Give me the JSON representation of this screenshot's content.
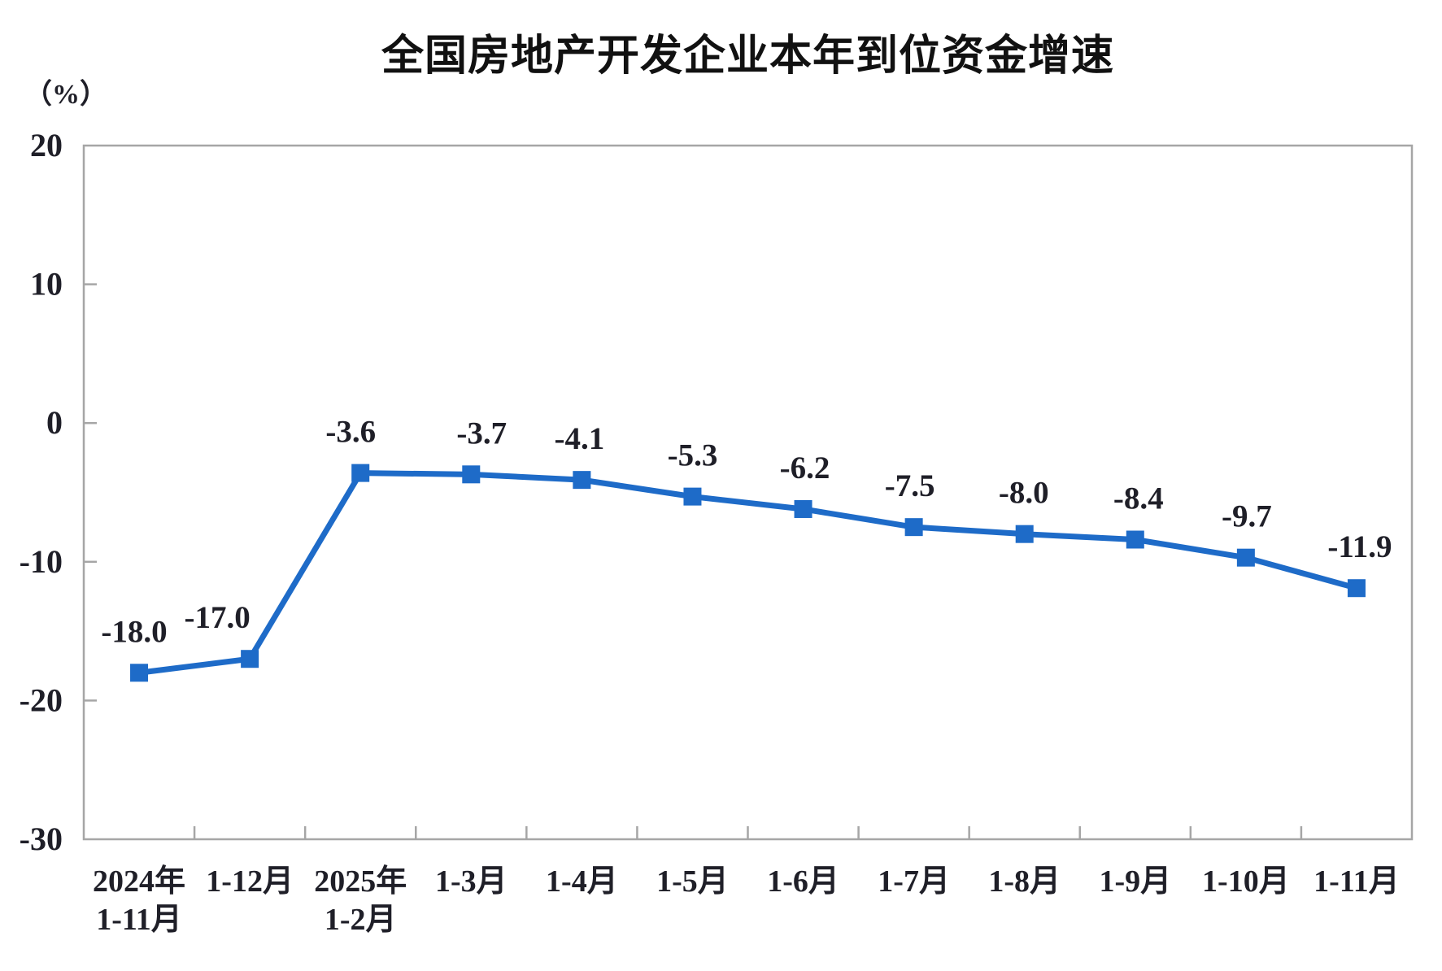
{
  "page": {
    "background": "#ffffff"
  },
  "title": "全国房地产开发企业本年到位资金增速",
  "unit_label": "（%）",
  "chart_data": {
    "type": "line",
    "title": "全国房地产开发企业本年到位资金增速",
    "unit": "（%）",
    "categories": [
      {
        "line1": "2024年",
        "line2": "1-11月"
      },
      {
        "line1": "1-12月",
        "line2": ""
      },
      {
        "line1": "2025年",
        "line2": "1-2月"
      },
      {
        "line1": "1-3月",
        "line2": ""
      },
      {
        "line1": "1-4月",
        "line2": ""
      },
      {
        "line1": "1-5月",
        "line2": ""
      },
      {
        "line1": "1-6月",
        "line2": ""
      },
      {
        "line1": "1-7月",
        "line2": ""
      },
      {
        "line1": "1-8月",
        "line2": ""
      },
      {
        "line1": "1-9月",
        "line2": ""
      },
      {
        "line1": "1-10月",
        "line2": ""
      },
      {
        "line1": "1-11月",
        "line2": ""
      }
    ],
    "values": [
      -18.0,
      -17.0,
      -3.6,
      -3.7,
      -4.1,
      -5.3,
      -6.2,
      -7.5,
      -8.0,
      -8.4,
      -9.7,
      -11.9
    ],
    "point_labels": [
      "-18.0",
      "-17.0",
      "-3.6",
      "-3.7",
      "-4.1",
      "-5.3",
      "-6.2",
      "-7.5",
      "-8.0",
      "-8.4",
      "-9.7",
      "-11.9"
    ],
    "label_dx": [
      -6,
      -40,
      -12,
      13,
      -3,
      0,
      2,
      -5,
      -1,
      4,
      1,
      4
    ],
    "y_ticks": [
      20,
      10,
      0,
      -10,
      -20,
      -30
    ],
    "ylim": [
      -30,
      20
    ],
    "xlabel": "",
    "ylabel": "（%）",
    "grid": false,
    "legend_position": "none",
    "marker": "square",
    "colors": {
      "line": "#1E6BC8",
      "marker": "#1E6BC8",
      "text": "#1f1f28",
      "axis_border": "#A6A6A6",
      "title_text": "#111111"
    }
  }
}
